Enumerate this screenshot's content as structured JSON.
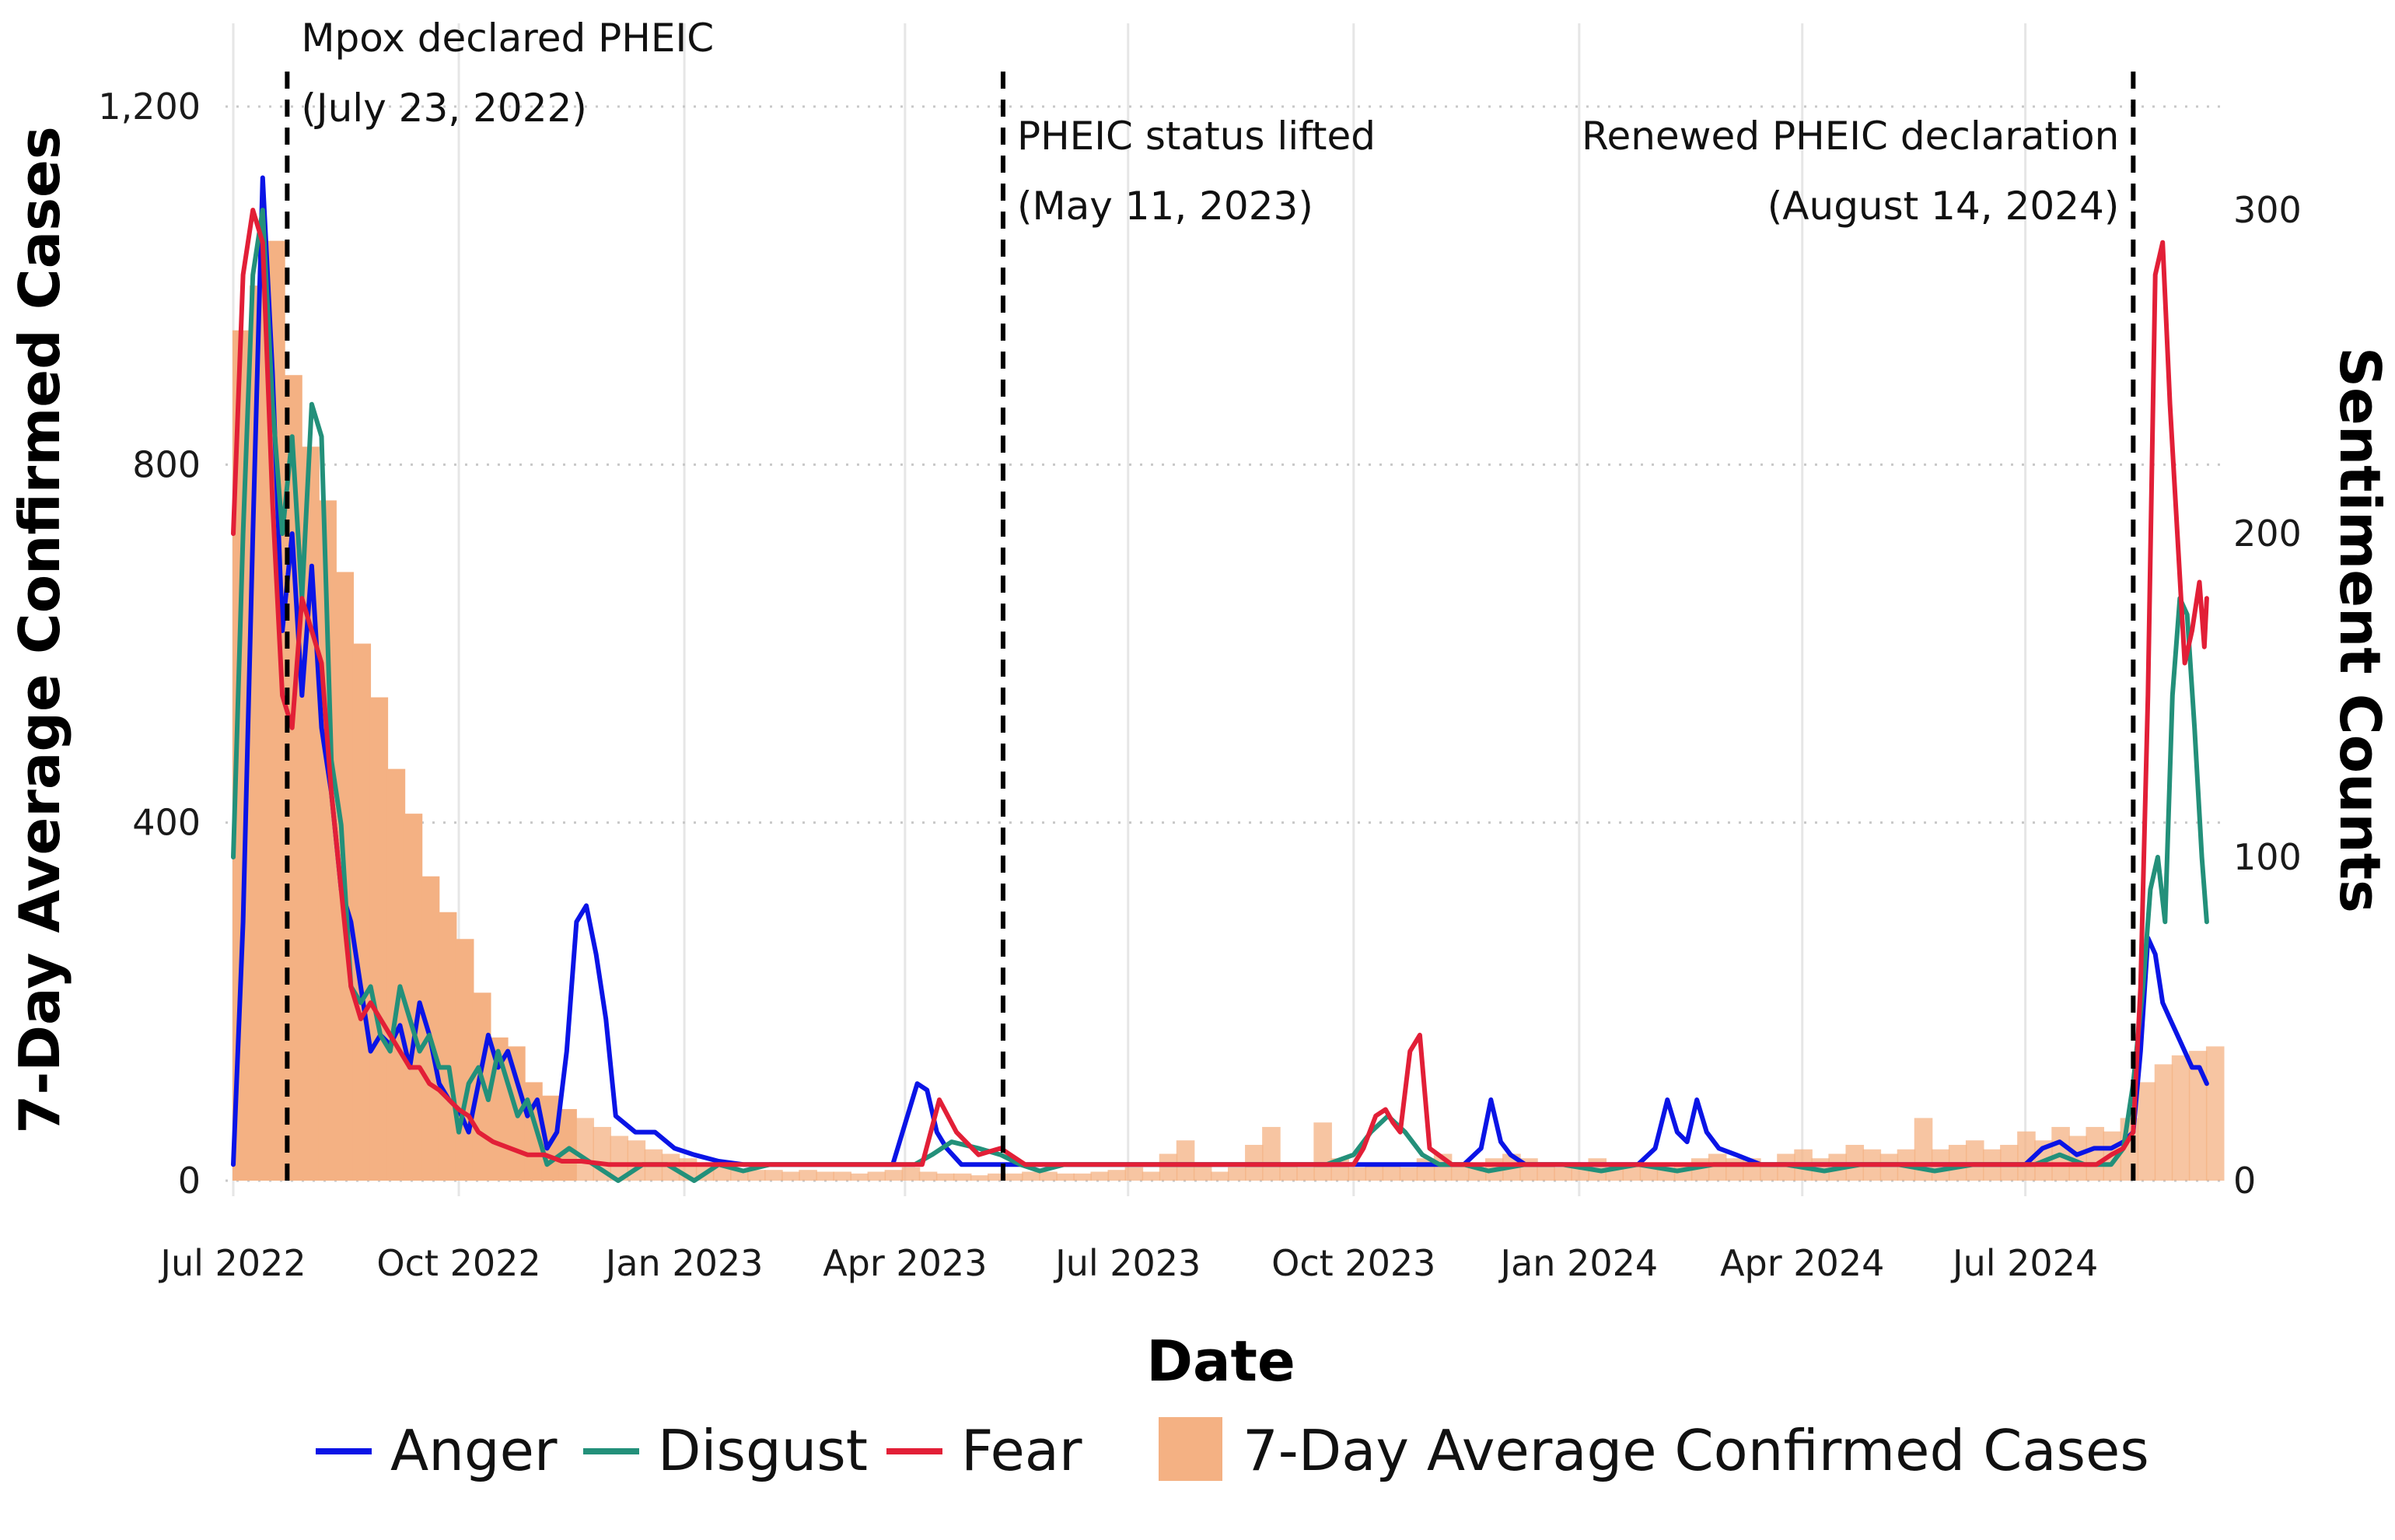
{
  "chart_data": {
    "type": "bar+line",
    "title": "",
    "xlabel": "Date",
    "ylabel": "7-Day Average Confirmed Cases",
    "y2label": "Sentiment Counts",
    "xlim": [
      "2022-07-01",
      "2024-09-20"
    ],
    "ylim": [
      0,
      1200
    ],
    "y2lim": [
      0,
      332
    ],
    "x_ticks": [
      {
        "date": "2022-07-01",
        "label": "Jul 2022"
      },
      {
        "date": "2022-10-01",
        "label": "Oct 2022"
      },
      {
        "date": "2023-01-01",
        "label": "Jan 2023"
      },
      {
        "date": "2023-04-01",
        "label": "Apr 2023"
      },
      {
        "date": "2023-07-01",
        "label": "Jul 2023"
      },
      {
        "date": "2023-10-01",
        "label": "Oct 2023"
      },
      {
        "date": "2024-01-01",
        "label": "Jan 2024"
      },
      {
        "date": "2024-04-01",
        "label": "Apr 2024"
      },
      {
        "date": "2024-07-01",
        "label": "Jul 2024"
      }
    ],
    "y_ticks": [
      {
        "value": 0,
        "label": "0"
      },
      {
        "value": 400,
        "label": "400"
      },
      {
        "value": 800,
        "label": "800"
      },
      {
        "value": 1200,
        "label": "1,200"
      }
    ],
    "y2_ticks": [
      {
        "value": 0,
        "label": "0"
      },
      {
        "value": 100,
        "label": "100"
      },
      {
        "value": 200,
        "label": "200"
      },
      {
        "value": 300,
        "label": "300"
      }
    ],
    "grid": true,
    "legend_position": "bottom",
    "events": [
      {
        "date": "2022-07-23",
        "lines": [
          "Mpox declared PHEIC",
          "(July 23, 2022)"
        ],
        "align": "left",
        "row": 0
      },
      {
        "date": "2023-05-11",
        "lines": [
          "PHEIC status lifted",
          "(May 11, 2023)"
        ],
        "align": "left",
        "row": 1
      },
      {
        "date": "2024-08-14",
        "lines": [
          "Renewed PHEIC declaration",
          "(August 14, 2024)"
        ],
        "align": "right",
        "row": 1
      }
    ],
    "cases": {
      "name": "7-Day Average Confirmed Cases",
      "color": "#f4b183",
      "axis": "left",
      "dates": [
        "2022-07-01",
        "2022-07-08",
        "2022-07-15",
        "2022-07-22",
        "2022-07-29",
        "2022-08-05",
        "2022-08-12",
        "2022-08-19",
        "2022-08-26",
        "2022-09-02",
        "2022-09-09",
        "2022-09-16",
        "2022-09-23",
        "2022-09-30",
        "2022-10-07",
        "2022-10-14",
        "2022-10-21",
        "2022-10-28",
        "2022-11-04",
        "2022-11-11",
        "2022-11-18",
        "2022-11-25",
        "2022-12-02",
        "2022-12-09",
        "2022-12-16",
        "2022-12-23",
        "2022-12-30",
        "2023-01-06",
        "2023-01-13",
        "2023-01-20",
        "2023-01-27",
        "2023-02-03",
        "2023-02-10",
        "2023-02-17",
        "2023-02-24",
        "2023-03-03",
        "2023-03-10",
        "2023-03-17",
        "2023-03-24",
        "2023-03-31",
        "2023-04-07",
        "2023-04-14",
        "2023-04-21",
        "2023-04-28",
        "2023-05-05",
        "2023-05-12",
        "2023-05-19",
        "2023-05-26",
        "2023-06-02",
        "2023-06-09",
        "2023-06-16",
        "2023-06-23",
        "2023-06-30",
        "2023-07-07",
        "2023-07-14",
        "2023-07-21",
        "2023-07-28",
        "2023-08-04",
        "2023-08-11",
        "2023-08-18",
        "2023-08-25",
        "2023-09-01",
        "2023-09-08",
        "2023-09-15",
        "2023-09-22",
        "2023-09-29",
        "2023-10-06",
        "2023-10-13",
        "2023-10-20",
        "2023-10-27",
        "2023-11-03",
        "2023-11-10",
        "2023-11-17",
        "2023-11-24",
        "2023-12-01",
        "2023-12-08",
        "2023-12-15",
        "2023-12-22",
        "2023-12-29",
        "2024-01-05",
        "2024-01-12",
        "2024-01-19",
        "2024-01-26",
        "2024-02-02",
        "2024-02-09",
        "2024-02-16",
        "2024-02-23",
        "2024-03-01",
        "2024-03-08",
        "2024-03-15",
        "2024-03-22",
        "2024-03-29",
        "2024-04-05",
        "2024-04-12",
        "2024-04-19",
        "2024-04-26",
        "2024-05-03",
        "2024-05-10",
        "2024-05-17",
        "2024-05-24",
        "2024-05-31",
        "2024-06-07",
        "2024-06-14",
        "2024-06-21",
        "2024-06-28",
        "2024-07-05",
        "2024-07-12",
        "2024-07-19",
        "2024-07-26",
        "2024-08-02",
        "2024-08-09",
        "2024-08-16",
        "2024-08-23",
        "2024-08-30",
        "2024-09-06",
        "2024-09-13"
      ],
      "values": [
        950,
        1000,
        1050,
        900,
        820,
        760,
        680,
        600,
        540,
        460,
        410,
        340,
        300,
        270,
        210,
        160,
        150,
        110,
        95,
        80,
        70,
        60,
        50,
        45,
        35,
        30,
        25,
        20,
        15,
        13,
        12,
        12,
        10,
        12,
        10,
        10,
        8,
        10,
        12,
        15,
        10,
        8,
        8,
        6,
        8,
        8,
        10,
        10,
        8,
        8,
        10,
        12,
        15,
        10,
        30,
        45,
        20,
        10,
        15,
        40,
        60,
        20,
        15,
        65,
        25,
        15,
        20,
        18,
        15,
        25,
        30,
        20,
        15,
        25,
        30,
        25,
        20,
        15,
        20,
        25,
        20,
        20,
        15,
        15,
        20,
        25,
        30,
        25,
        25,
        20,
        30,
        35,
        25,
        30,
        40,
        35,
        30,
        35,
        70,
        35,
        40,
        45,
        35,
        40,
        55,
        45,
        60,
        50,
        60,
        55,
        70,
        110,
        130,
        140,
        145,
        150
      ]
    },
    "series": [
      {
        "name": "Anger",
        "color": "#0a14e6",
        "axis": "right",
        "x": [
          "2022-07-01",
          "2022-07-05",
          "2022-07-09",
          "2022-07-13",
          "2022-07-17",
          "2022-07-21",
          "2022-07-25",
          "2022-07-29",
          "2022-08-02",
          "2022-08-06",
          "2022-08-10",
          "2022-08-14",
          "2022-08-18",
          "2022-08-22",
          "2022-08-26",
          "2022-08-30",
          "2022-09-03",
          "2022-09-07",
          "2022-09-11",
          "2022-09-15",
          "2022-09-19",
          "2022-09-23",
          "2022-09-27",
          "2022-10-01",
          "2022-10-05",
          "2022-10-09",
          "2022-10-13",
          "2022-10-17",
          "2022-10-21",
          "2022-10-25",
          "2022-10-29",
          "2022-11-02",
          "2022-11-06",
          "2022-11-10",
          "2022-11-14",
          "2022-11-18",
          "2022-11-22",
          "2022-11-26",
          "2022-11-30",
          "2022-12-04",
          "2022-12-12",
          "2022-12-20",
          "2022-12-28",
          "2023-01-05",
          "2023-01-15",
          "2023-01-25",
          "2023-02-05",
          "2023-02-15",
          "2023-02-25",
          "2023-03-07",
          "2023-03-17",
          "2023-03-27",
          "2023-04-02",
          "2023-04-06",
          "2023-04-10",
          "2023-04-14",
          "2023-04-18",
          "2023-04-24",
          "2023-05-02",
          "2023-05-10",
          "2023-05-20",
          "2023-06-01",
          "2023-06-15",
          "2023-07-01",
          "2023-07-15",
          "2023-07-25",
          "2023-08-05",
          "2023-08-15",
          "2023-09-01",
          "2023-09-15",
          "2023-09-25",
          "2023-10-01",
          "2023-10-08",
          "2023-10-15",
          "2023-10-25",
          "2023-11-05",
          "2023-11-15",
          "2023-11-22",
          "2023-11-26",
          "2023-11-30",
          "2023-12-04",
          "2023-12-10",
          "2023-12-20",
          "2024-01-01",
          "2024-01-15",
          "2024-01-25",
          "2024-02-01",
          "2024-02-06",
          "2024-02-10",
          "2024-02-14",
          "2024-02-18",
          "2024-02-22",
          "2024-02-27",
          "2024-03-05",
          "2024-03-15",
          "2024-03-25",
          "2024-04-05",
          "2024-04-20",
          "2024-05-05",
          "2024-05-20",
          "2024-06-05",
          "2024-06-20",
          "2024-07-01",
          "2024-07-08",
          "2024-07-15",
          "2024-07-22",
          "2024-07-29",
          "2024-08-05",
          "2024-08-10",
          "2024-08-14",
          "2024-08-17",
          "2024-08-20",
          "2024-08-23",
          "2024-08-26",
          "2024-08-29",
          "2024-09-01",
          "2024-09-04",
          "2024-09-07",
          "2024-09-10",
          "2024-09-13"
        ],
        "values": [
          5,
          80,
          200,
          310,
          250,
          170,
          200,
          150,
          190,
          140,
          120,
          90,
          80,
          60,
          40,
          45,
          42,
          48,
          35,
          55,
          45,
          30,
          25,
          22,
          15,
          30,
          45,
          35,
          40,
          30,
          20,
          25,
          10,
          15,
          40,
          80,
          85,
          70,
          50,
          20,
          15,
          15,
          10,
          8,
          6,
          5,
          5,
          5,
          5,
          5,
          5,
          5,
          20,
          30,
          28,
          15,
          10,
          5,
          5,
          5,
          5,
          5,
          5,
          5,
          5,
          5,
          5,
          5,
          5,
          5,
          5,
          5,
          5,
          5,
          5,
          5,
          5,
          10,
          25,
          12,
          8,
          5,
          5,
          5,
          5,
          5,
          10,
          25,
          15,
          12,
          25,
          15,
          10,
          8,
          5,
          5,
          5,
          5,
          5,
          5,
          5,
          5,
          5,
          10,
          12,
          8,
          10,
          10,
          12,
          15,
          40,
          75,
          70,
          55,
          50,
          45,
          40,
          35,
          35,
          30
        ]
      },
      {
        "name": "Disgust",
        "color": "#23907a",
        "axis": "right",
        "x": [
          "2022-07-01",
          "2022-07-05",
          "2022-07-09",
          "2022-07-13",
          "2022-07-17",
          "2022-07-21",
          "2022-07-25",
          "2022-07-29",
          "2022-08-02",
          "2022-08-06",
          "2022-08-10",
          "2022-08-14",
          "2022-08-18",
          "2022-08-22",
          "2022-08-26",
          "2022-08-30",
          "2022-09-03",
          "2022-09-07",
          "2022-09-11",
          "2022-09-15",
          "2022-09-19",
          "2022-09-23",
          "2022-09-27",
          "2022-10-01",
          "2022-10-05",
          "2022-10-09",
          "2022-10-13",
          "2022-10-17",
          "2022-10-21",
          "2022-10-25",
          "2022-10-29",
          "2022-11-02",
          "2022-11-06",
          "2022-11-15",
          "2022-11-25",
          "2022-12-05",
          "2022-12-15",
          "2022-12-25",
          "2023-01-05",
          "2023-01-15",
          "2023-01-25",
          "2023-02-05",
          "2023-02-15",
          "2023-02-25",
          "2023-03-07",
          "2023-03-17",
          "2023-03-27",
          "2023-04-05",
          "2023-04-12",
          "2023-04-20",
          "2023-05-01",
          "2023-05-10",
          "2023-05-18",
          "2023-05-26",
          "2023-06-05",
          "2023-06-20",
          "2023-07-05",
          "2023-07-20",
          "2023-08-05",
          "2023-08-20",
          "2023-09-05",
          "2023-09-20",
          "2023-10-01",
          "2023-10-08",
          "2023-10-15",
          "2023-10-22",
          "2023-10-29",
          "2023-11-05",
          "2023-11-15",
          "2023-11-25",
          "2023-12-10",
          "2023-12-25",
          "2024-01-10",
          "2024-01-25",
          "2024-02-10",
          "2024-02-25",
          "2024-03-10",
          "2024-03-25",
          "2024-04-10",
          "2024-04-25",
          "2024-05-10",
          "2024-05-25",
          "2024-06-10",
          "2024-06-25",
          "2024-07-05",
          "2024-07-15",
          "2024-07-25",
          "2024-08-05",
          "2024-08-10",
          "2024-08-14",
          "2024-08-18",
          "2024-08-21",
          "2024-08-24",
          "2024-08-27",
          "2024-08-30",
          "2024-09-02",
          "2024-09-05",
          "2024-09-08",
          "2024-09-11",
          "2024-09-13"
        ],
        "values": [
          100,
          200,
          280,
          300,
          240,
          200,
          230,
          180,
          240,
          230,
          130,
          110,
          60,
          55,
          60,
          45,
          40,
          60,
          50,
          40,
          45,
          35,
          35,
          15,
          30,
          35,
          25,
          40,
          30,
          20,
          25,
          15,
          5,
          10,
          5,
          0,
          5,
          5,
          0,
          5,
          3,
          5,
          5,
          5,
          5,
          5,
          5,
          5,
          8,
          12,
          10,
          8,
          5,
          3,
          5,
          5,
          5,
          5,
          5,
          5,
          5,
          5,
          8,
          15,
          20,
          15,
          8,
          5,
          5,
          3,
          5,
          5,
          3,
          5,
          3,
          5,
          5,
          5,
          3,
          5,
          5,
          3,
          5,
          5,
          5,
          8,
          5,
          5,
          10,
          30,
          60,
          90,
          100,
          80,
          150,
          180,
          175,
          140,
          100,
          80
        ]
      },
      {
        "name": "Fear",
        "color": "#e21f37",
        "axis": "right",
        "x": [
          "2022-07-01",
          "2022-07-05",
          "2022-07-09",
          "2022-07-13",
          "2022-07-17",
          "2022-07-21",
          "2022-07-25",
          "2022-07-29",
          "2022-08-02",
          "2022-08-06",
          "2022-08-10",
          "2022-08-14",
          "2022-08-18",
          "2022-08-22",
          "2022-08-26",
          "2022-08-30",
          "2022-09-03",
          "2022-09-07",
          "2022-09-11",
          "2022-09-15",
          "2022-09-19",
          "2022-09-23",
          "2022-09-27",
          "2022-10-01",
          "2022-10-05",
          "2022-10-09",
          "2022-10-15",
          "2022-10-22",
          "2022-10-29",
          "2022-11-05",
          "2022-11-12",
          "2022-11-20",
          "2022-12-01",
          "2022-12-10",
          "2022-12-20",
          "2023-01-01",
          "2023-01-15",
          "2023-02-01",
          "2023-02-15",
          "2023-03-01",
          "2023-03-15",
          "2023-04-01",
          "2023-04-08",
          "2023-04-15",
          "2023-04-22",
          "2023-05-01",
          "2023-05-10",
          "2023-05-20",
          "2023-06-05",
          "2023-06-20",
          "2023-07-05",
          "2023-07-20",
          "2023-08-05",
          "2023-08-20",
          "2023-09-05",
          "2023-09-20",
          "2023-10-01",
          "2023-10-05",
          "2023-10-10",
          "2023-10-14",
          "2023-10-17",
          "2023-10-20",
          "2023-10-24",
          "2023-10-28",
          "2023-11-01",
          "2023-11-10",
          "2023-11-20",
          "2023-12-05",
          "2023-12-20",
          "2024-01-05",
          "2024-01-20",
          "2024-02-05",
          "2024-02-20",
          "2024-03-05",
          "2024-03-20",
          "2024-04-05",
          "2024-04-20",
          "2024-05-05",
          "2024-05-20",
          "2024-06-05",
          "2024-06-20",
          "2024-07-05",
          "2024-07-20",
          "2024-07-30",
          "2024-08-05",
          "2024-08-10",
          "2024-08-14",
          "2024-08-17",
          "2024-08-20",
          "2024-08-23",
          "2024-08-26",
          "2024-08-29",
          "2024-09-01",
          "2024-09-04",
          "2024-09-07",
          "2024-09-10",
          "2024-09-12",
          "2024-09-13"
        ],
        "values": [
          200,
          280,
          300,
          290,
          210,
          150,
          140,
          180,
          170,
          160,
          120,
          90,
          60,
          50,
          55,
          50,
          45,
          40,
          35,
          35,
          30,
          28,
          25,
          22,
          20,
          15,
          12,
          10,
          8,
          8,
          6,
          6,
          5,
          5,
          5,
          5,
          5,
          5,
          5,
          5,
          5,
          5,
          5,
          25,
          15,
          8,
          10,
          5,
          5,
          5,
          5,
          5,
          5,
          5,
          5,
          5,
          5,
          10,
          20,
          22,
          18,
          15,
          40,
          45,
          10,
          5,
          5,
          5,
          5,
          5,
          5,
          5,
          5,
          5,
          5,
          5,
          5,
          5,
          5,
          5,
          5,
          5,
          5,
          5,
          8,
          10,
          15,
          60,
          150,
          280,
          290,
          240,
          200,
          160,
          170,
          185,
          165,
          180
        ]
      }
    ]
  },
  "legend": {
    "items": [
      {
        "label": "Anger",
        "kind": "line",
        "color": "#0a14e6"
      },
      {
        "label": "Disgust",
        "kind": "line",
        "color": "#23907a"
      },
      {
        "label": "Fear",
        "kind": "line",
        "color": "#e21f37"
      },
      {
        "label": "7-Day Average Confirmed Cases",
        "kind": "box",
        "color": "#f4b183"
      }
    ]
  }
}
